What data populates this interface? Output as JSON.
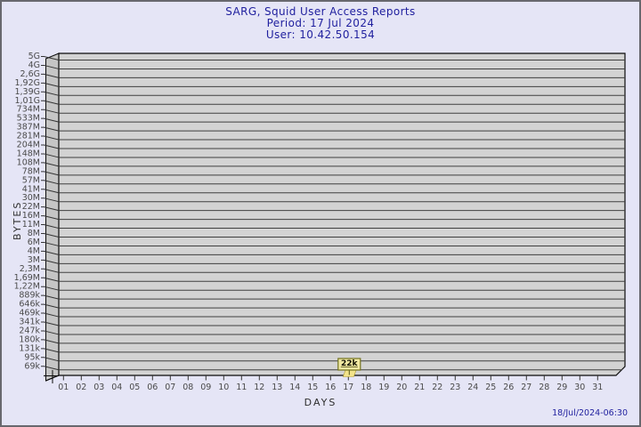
{
  "title": {
    "line1": "SARG, Squid User Access Reports",
    "line2": "Period: 17 Jul 2024",
    "line3": "User: 10.42.50.154"
  },
  "footer": {
    "timestamp": "18/Jul/2024-06:30"
  },
  "colors": {
    "background": "#e5e5f6",
    "frame_border": "#68686e",
    "title_text": "#1f1f9e",
    "plot_face": "#d3d3d3",
    "plot_wall": "#c5c5c5",
    "gridline": "#3f3f3f",
    "plot_border": "#0a0a0a",
    "tick_line": "#333333",
    "tick_text": "#4a4a4a",
    "axis_title_text": "#2e2e2e",
    "bar_fill": "#f2e38a",
    "bar_edge": "#b09b30",
    "tag_fill": "#f1e9a2",
    "tag_border": "#73731f",
    "tag_text": "#111100"
  },
  "chart_data": {
    "type": "bar",
    "title": "SARG, Squid User Access Reports",
    "subtitle": [
      "Period: 17 Jul 2024",
      "User: 10.42.50.154"
    ],
    "xlabel": "DAYS",
    "ylabel": "BYTES",
    "y_scale": "log",
    "grid": true,
    "legend": false,
    "ylim_labels": [
      "69k",
      "5G"
    ],
    "y_axis_ticks": [
      "5G",
      "4G",
      "2,6G",
      "1,92G",
      "1,39G",
      "1,01G",
      "734M",
      "533M",
      "387M",
      "281M",
      "204M",
      "148M",
      "108M",
      "78M",
      "57M",
      "41M",
      "30M",
      "22M",
      "16M",
      "11M",
      "8M",
      "6M",
      "4M",
      "3M",
      "2,3M",
      "1,69M",
      "1,22M",
      "889k",
      "646k",
      "469k",
      "341k",
      "247k",
      "180k",
      "131k",
      "95k",
      "69k"
    ],
    "categories": [
      "01",
      "02",
      "03",
      "04",
      "05",
      "06",
      "07",
      "08",
      "09",
      "10",
      "11",
      "12",
      "13",
      "14",
      "15",
      "16",
      "17",
      "18",
      "19",
      "20",
      "21",
      "22",
      "23",
      "24",
      "25",
      "26",
      "27",
      "28",
      "29",
      "30",
      "31"
    ],
    "series": [
      {
        "name": "Bytes",
        "values": [
          null,
          null,
          null,
          null,
          null,
          null,
          null,
          null,
          null,
          null,
          null,
          null,
          null,
          null,
          null,
          null,
          22000,
          null,
          null,
          null,
          null,
          null,
          null,
          null,
          null,
          null,
          null,
          null,
          null,
          null,
          null
        ],
        "value_labels": [
          null,
          null,
          null,
          null,
          null,
          null,
          null,
          null,
          null,
          null,
          null,
          null,
          null,
          null,
          null,
          null,
          "22k",
          null,
          null,
          null,
          null,
          null,
          null,
          null,
          null,
          null,
          null,
          null,
          null,
          null,
          null
        ]
      }
    ],
    "annotation": {
      "text": "22k",
      "category": "17"
    }
  }
}
